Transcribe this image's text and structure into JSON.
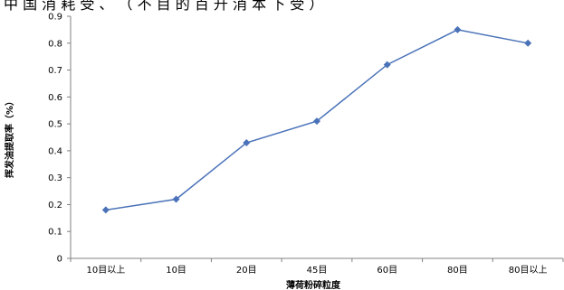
{
  "header_text": "中 国 消 耗 受 、 （ 不 目 的 百 升 消 本 下 受 ）",
  "chart_data": {
    "type": "line",
    "title": "",
    "xlabel": "薄荷粉碎粒度",
    "ylabel": "挥发油提取率（%）",
    "categories": [
      "10目以上",
      "10目",
      "20目",
      "45目",
      "60目",
      "80目",
      "80目以上"
    ],
    "series": [
      {
        "values": [
          0.18,
          0.22,
          0.43,
          0.51,
          0.72,
          0.85,
          0.8
        ]
      }
    ],
    "ylim": [
      0,
      0.9
    ],
    "yticks": [
      "0",
      "0.1",
      "0.2",
      "0.3",
      "0.4",
      "0.5",
      "0.6",
      "0.7",
      "0.8",
      "0.9"
    ],
    "grid": false,
    "legend": "none",
    "colors": {
      "line": "#4a72b8",
      "marker": "#4a72b8",
      "axis": "#808080"
    }
  }
}
